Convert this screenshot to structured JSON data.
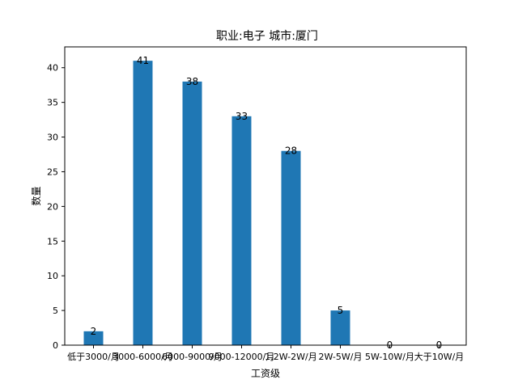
{
  "chart_data": {
    "type": "bar",
    "title": "职业:电子      城市:厦门",
    "xlabel": "工资级",
    "ylabel": "数量",
    "categories": [
      "低于3000/月",
      "3000-6000/月",
      "6000-9000/月",
      "9000-12000/月",
      "1.2W-2W/月",
      "2W-5W/月",
      "5W-10W/月",
      "大于10W/月"
    ],
    "values": [
      2,
      41,
      38,
      33,
      28,
      5,
      0,
      0
    ],
    "ylim": [
      0,
      43
    ],
    "yticks": [
      0,
      5,
      10,
      15,
      20,
      25,
      30,
      35,
      40
    ],
    "grid": false,
    "bar_color": "#1f77b4"
  }
}
